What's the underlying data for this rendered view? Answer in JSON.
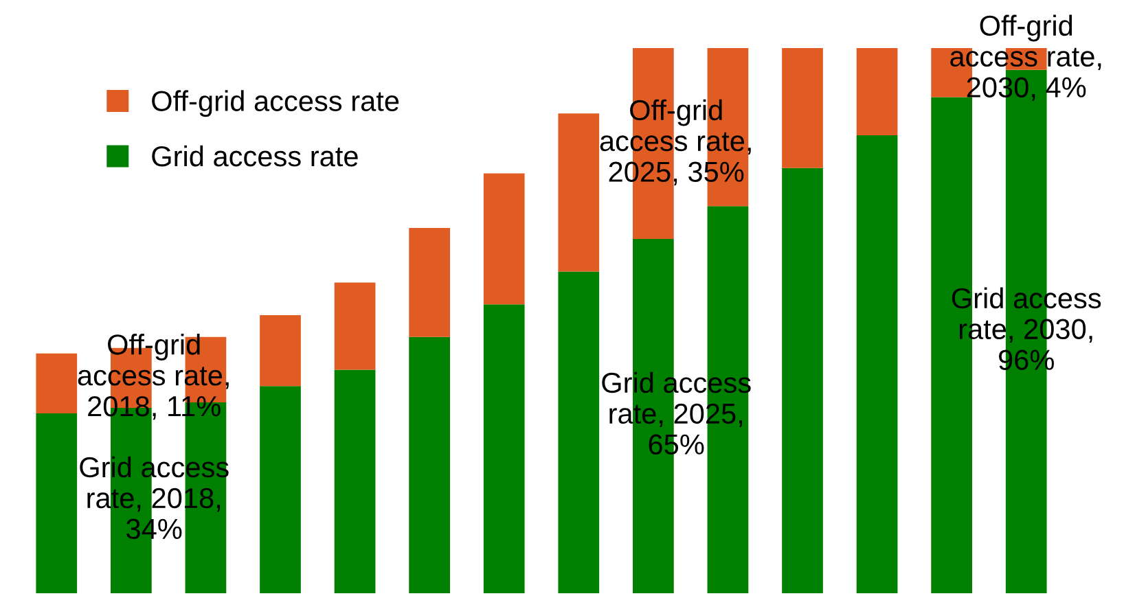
{
  "chart_data": {
    "type": "bar",
    "stacked": true,
    "categories": [
      null,
      null,
      null,
      null,
      null,
      null,
      null,
      null,
      null,
      null,
      null,
      null,
      null,
      null
    ],
    "series": [
      {
        "name": "Grid access rate",
        "color": "#008000",
        "values": [
          33,
          34,
          35,
          38,
          41,
          47,
          53,
          59,
          65,
          71,
          78,
          84,
          91,
          96
        ],
        "value_labels": [
          null,
          "Grid access\nrate, 2018,\n34%",
          null,
          null,
          null,
          null,
          null,
          null,
          "Grid access\nrate, 2025,\n65%",
          null,
          null,
          null,
          null,
          "Grid access\nrate, 2030,\n96%"
        ]
      },
      {
        "name": "Off-grid access rate",
        "color": "#e05c22",
        "values": [
          11,
          11,
          12,
          13,
          16,
          20,
          24,
          29,
          35,
          29,
          22,
          16,
          9,
          4
        ],
        "value_labels": [
          null,
          "Off-grid\naccess rate,\n2018, 11%",
          null,
          null,
          null,
          null,
          null,
          null,
          "Off-grid\naccess rate,\n2025, 35%",
          null,
          null,
          null,
          null,
          "Off-grid\naccess rate,\n2030, 4%"
        ]
      }
    ],
    "legend": "top left",
    "grid": false
  }
}
